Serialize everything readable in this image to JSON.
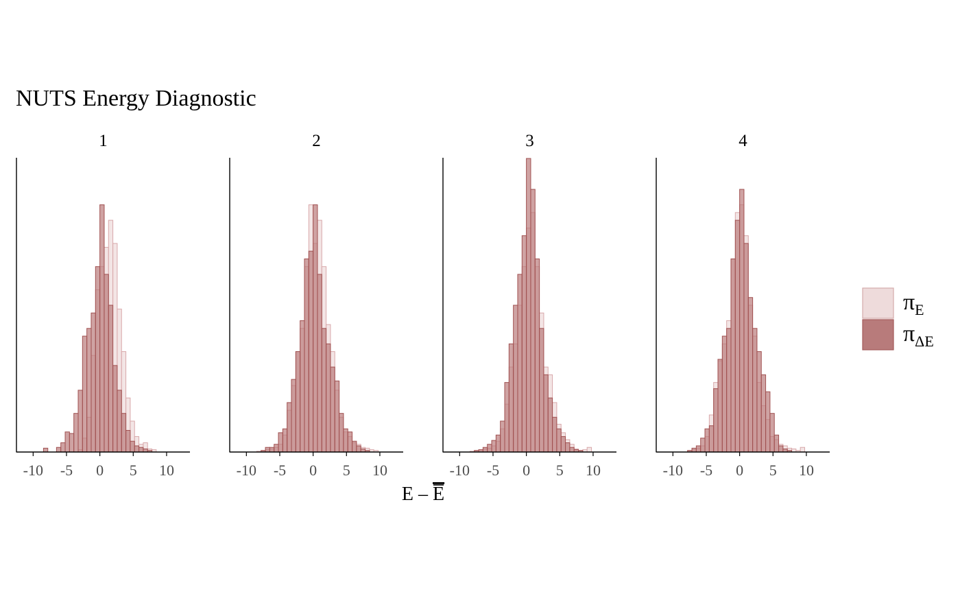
{
  "chart_data": {
    "type": "histogram",
    "title": "NUTS Energy Diagnostic",
    "xlabel": "E – E",
    "xlabel_overlined": "E",
    "x_ticks": [
      -10,
      -5,
      0,
      5,
      10
    ],
    "x_tick_labels": [
      "-10",
      "-5",
      "0",
      "5",
      "10"
    ],
    "xlim": [
      -12.5,
      13.5
    ],
    "bin_width": 0.65,
    "bins_start": -9.75,
    "bins_count": 30,
    "legend": {
      "placement": "right",
      "entries": [
        {
          "symbol": "π",
          "subscript": "E",
          "fill": "#eedbdb",
          "stroke": "#d4aaaa",
          "opacity": 1
        },
        {
          "symbol": "π",
          "subscript": "ΔE",
          "fill": "#b87b7b",
          "stroke": "#a45a5a",
          "opacity": 1
        }
      ]
    },
    "series_style": {
      "E": {
        "fill": "#eedbdb",
        "stroke": "#d8a8aa",
        "opacity": 0.72
      },
      "dE": {
        "fill": "#b87878",
        "stroke": "#a05050",
        "opacity": 0.68
      }
    },
    "panels": [
      {
        "label": "1",
        "ymax": 380,
        "E": [
          0,
          0,
          0,
          0,
          0,
          0,
          0,
          0,
          0,
          0,
          3,
          18,
          45,
          125,
          210,
          240,
          265,
          300,
          270,
          185,
          130,
          70,
          40,
          20,
          10,
          12,
          4,
          3,
          0,
          0
        ],
        "dE": [
          0,
          0,
          5,
          0,
          0,
          6,
          12,
          26,
          24,
          50,
          80,
          150,
          160,
          180,
          240,
          320,
          230,
          190,
          112,
          80,
          50,
          28,
          14,
          8,
          6,
          4,
          2,
          0,
          0,
          0
        ]
      },
      {
        "label": "2",
        "ymax": 380,
        "E": [
          0,
          0,
          1,
          2,
          3,
          4,
          6,
          10,
          22,
          54,
          86,
          130,
          160,
          240,
          320,
          270,
          300,
          240,
          165,
          130,
          80,
          45,
          26,
          20,
          12,
          10,
          6,
          5,
          3,
          2
        ],
        "dE": [
          0,
          0,
          0,
          2,
          6,
          6,
          10,
          25,
          30,
          64,
          94,
          130,
          170,
          250,
          260,
          320,
          230,
          160,
          140,
          110,
          92,
          50,
          30,
          26,
          14,
          8,
          4,
          2,
          0,
          0
        ]
      },
      {
        "label": "3",
        "ymax": 380,
        "E": [
          0,
          0,
          1,
          2,
          3,
          4,
          5,
          8,
          14,
          30,
          62,
          110,
          140,
          190,
          240,
          290,
          310,
          240,
          180,
          110,
          100,
          64,
          36,
          25,
          16,
          10,
          4,
          2,
          3,
          6
        ],
        "dE": [
          0,
          0,
          0,
          2,
          3,
          6,
          10,
          15,
          22,
          40,
          90,
          140,
          190,
          230,
          280,
          380,
          340,
          250,
          160,
          100,
          70,
          45,
          30,
          20,
          12,
          6,
          3,
          2,
          0,
          0
        ]
      },
      {
        "label": "4",
        "ymax": 380,
        "E": [
          0,
          0,
          0,
          2,
          3,
          5,
          8,
          20,
          48,
          90,
          118,
          140,
          170,
          250,
          310,
          320,
          280,
          190,
          150,
          90,
          60,
          42,
          20,
          16,
          10,
          8,
          5,
          4,
          2,
          6
        ],
        "dE": [
          0,
          0,
          0,
          2,
          5,
          8,
          18,
          30,
          34,
          82,
          120,
          150,
          160,
          250,
          300,
          340,
          270,
          200,
          160,
          130,
          100,
          78,
          50,
          22,
          8,
          4,
          2,
          0,
          0,
          0
        ]
      }
    ]
  }
}
